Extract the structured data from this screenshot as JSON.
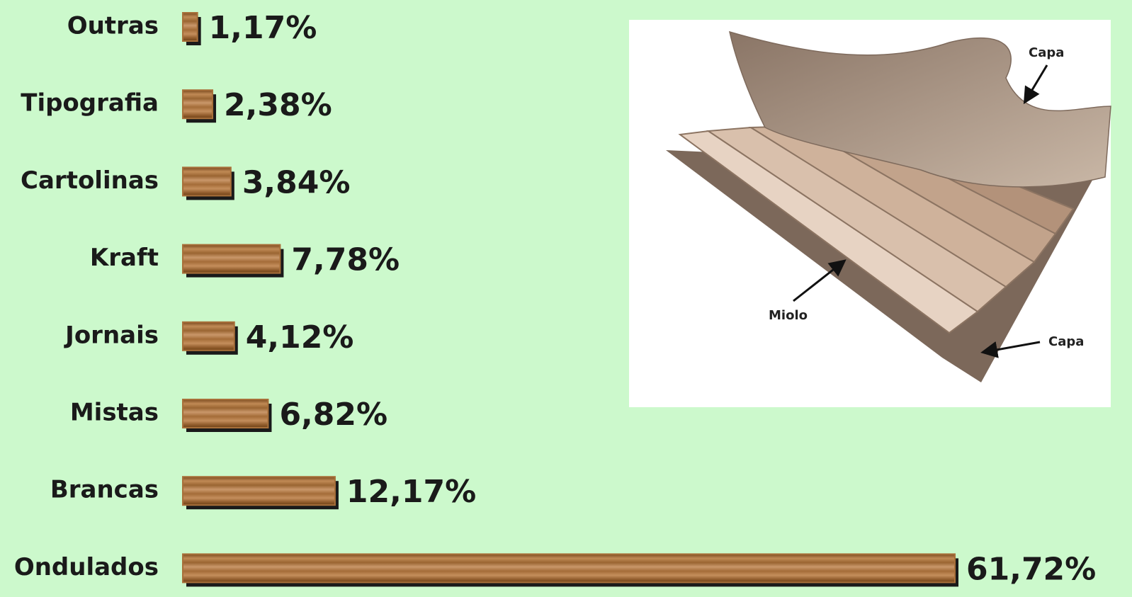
{
  "chart_data": {
    "type": "bar",
    "orientation": "horizontal",
    "categories": [
      "Outras",
      "Tipografia",
      "Cartolinas",
      "Kraft",
      "Jornais",
      "Mistas",
      "Brancas",
      "Ondulados"
    ],
    "values": [
      1.17,
      2.38,
      3.84,
      7.78,
      4.12,
      6.82,
      12.17,
      61.72
    ],
    "value_labels": [
      "1,17%",
      "2,38%",
      "3,84%",
      "7,78%",
      "4,12%",
      "6,82%",
      "12,17%",
      "61,72%"
    ],
    "color": "#a8703a"
  },
  "illustration": {
    "labels": [
      "Capa",
      "Miolo",
      "Capa"
    ]
  }
}
